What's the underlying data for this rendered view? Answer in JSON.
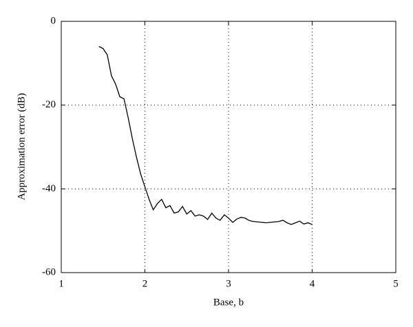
{
  "chart_data": {
    "type": "line",
    "x_label": "Base, b",
    "y_label": "Approximation error (dB)",
    "x": [
      1.45,
      1.5,
      1.55,
      1.6,
      1.65,
      1.7,
      1.75,
      1.8,
      1.85,
      1.9,
      1.95,
      2.0,
      2.05,
      2.1,
      2.15,
      2.2,
      2.25,
      2.3,
      2.35,
      2.4,
      2.45,
      2.5,
      2.55,
      2.6,
      2.65,
      2.7,
      2.75,
      2.8,
      2.85,
      2.9,
      2.95,
      3.0,
      3.05,
      3.1,
      3.15,
      3.2,
      3.25,
      3.3,
      3.35,
      3.4,
      3.45,
      3.5,
      3.55,
      3.6,
      3.65,
      3.7,
      3.75,
      3.8,
      3.85,
      3.9,
      3.95,
      4.0
    ],
    "series": [
      {
        "color": "#000000",
        "values": [
          -6,
          -6.5,
          -8,
          -13,
          -15,
          -18,
          -18.5,
          -23,
          -28,
          -32.5,
          -36.5,
          -39.5,
          -42.5,
          -45,
          -43.5,
          -42.5,
          -44.5,
          -44,
          -45.8,
          -45.5,
          -44.2,
          -46,
          -45.2,
          -46.5,
          -46.2,
          -46.5,
          -47.3,
          -45.8,
          -47,
          -47.5,
          -46.2,
          -47,
          -48,
          -47.2,
          -46.8,
          -47,
          -47.6,
          -47.8,
          -47.9,
          -48,
          -48.1,
          -48,
          -47.9,
          -47.8,
          -47.5,
          -48.1,
          -48.5,
          -48.1,
          -47.7,
          -48.4,
          -48.1,
          -48.5
        ]
      }
    ],
    "xlim": [
      1,
      5
    ],
    "ylim": [
      -60,
      0
    ],
    "xticks": [
      1,
      2,
      3,
      4,
      5
    ],
    "yticks": [
      -60,
      -40,
      -20,
      0
    ],
    "grid": true
  }
}
